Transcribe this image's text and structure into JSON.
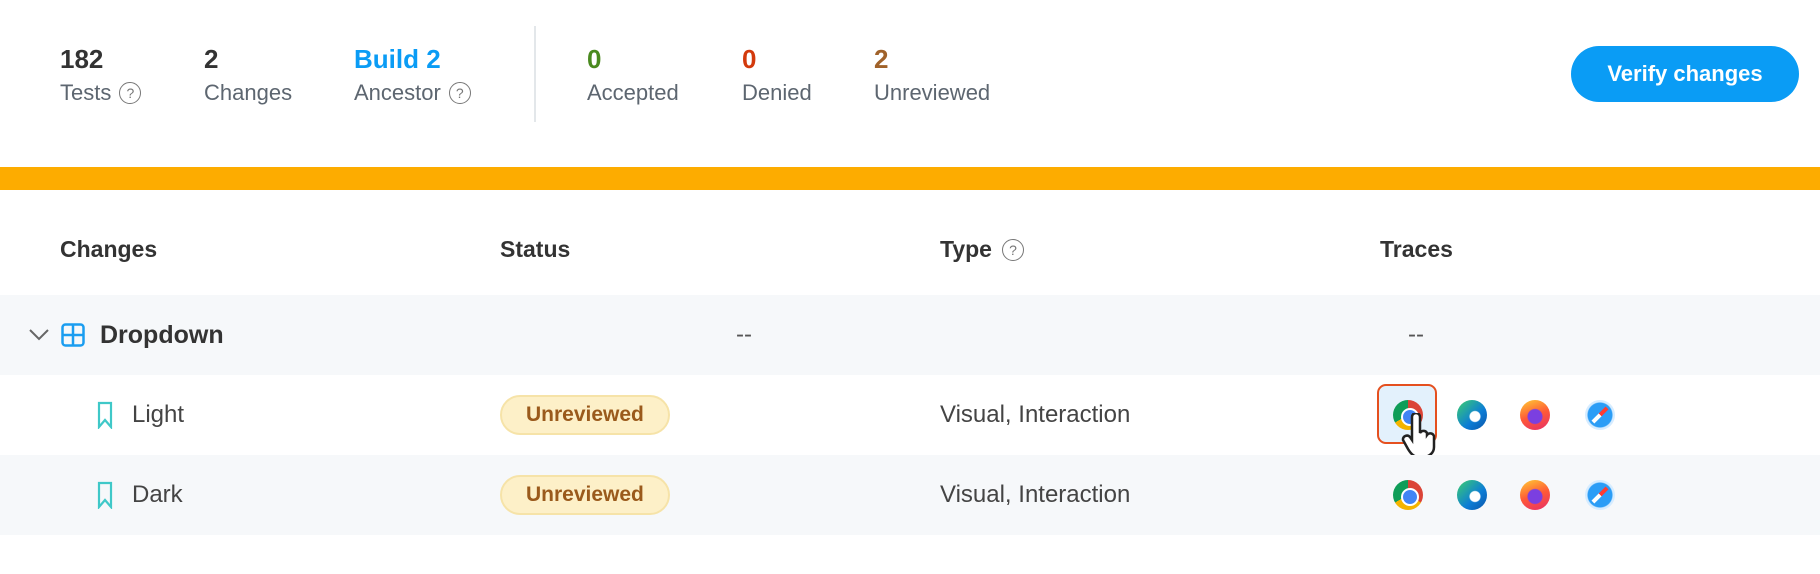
{
  "summary": {
    "tests": {
      "value": "182",
      "label": "Tests"
    },
    "changes": {
      "value": "2",
      "label": "Changes"
    },
    "ancestor": {
      "value": "Build 2",
      "label": "Ancestor"
    },
    "accepted": {
      "value": "0",
      "label": "Accepted",
      "color": "#4a8a1f"
    },
    "denied": {
      "value": "0",
      "label": "Denied",
      "color": "#d33a0c"
    },
    "unreviewed": {
      "value": "2",
      "label": "Unreviewed",
      "color": "#a0622a"
    }
  },
  "verify_label": "Verify changes",
  "help_glyph": "?",
  "columns": [
    "Changes",
    "Status",
    "Type",
    "Traces"
  ],
  "group": {
    "name": "Dropdown",
    "status": "--",
    "traces": "--"
  },
  "rows": [
    {
      "name": "Light",
      "status": "Unreviewed",
      "type": "Visual, Interaction",
      "selected_trace": "chrome"
    },
    {
      "name": "Dark",
      "status": "Unreviewed",
      "type": "Visual, Interaction"
    }
  ],
  "trace_browsers": [
    "chrome",
    "edge",
    "firefox",
    "safari"
  ]
}
